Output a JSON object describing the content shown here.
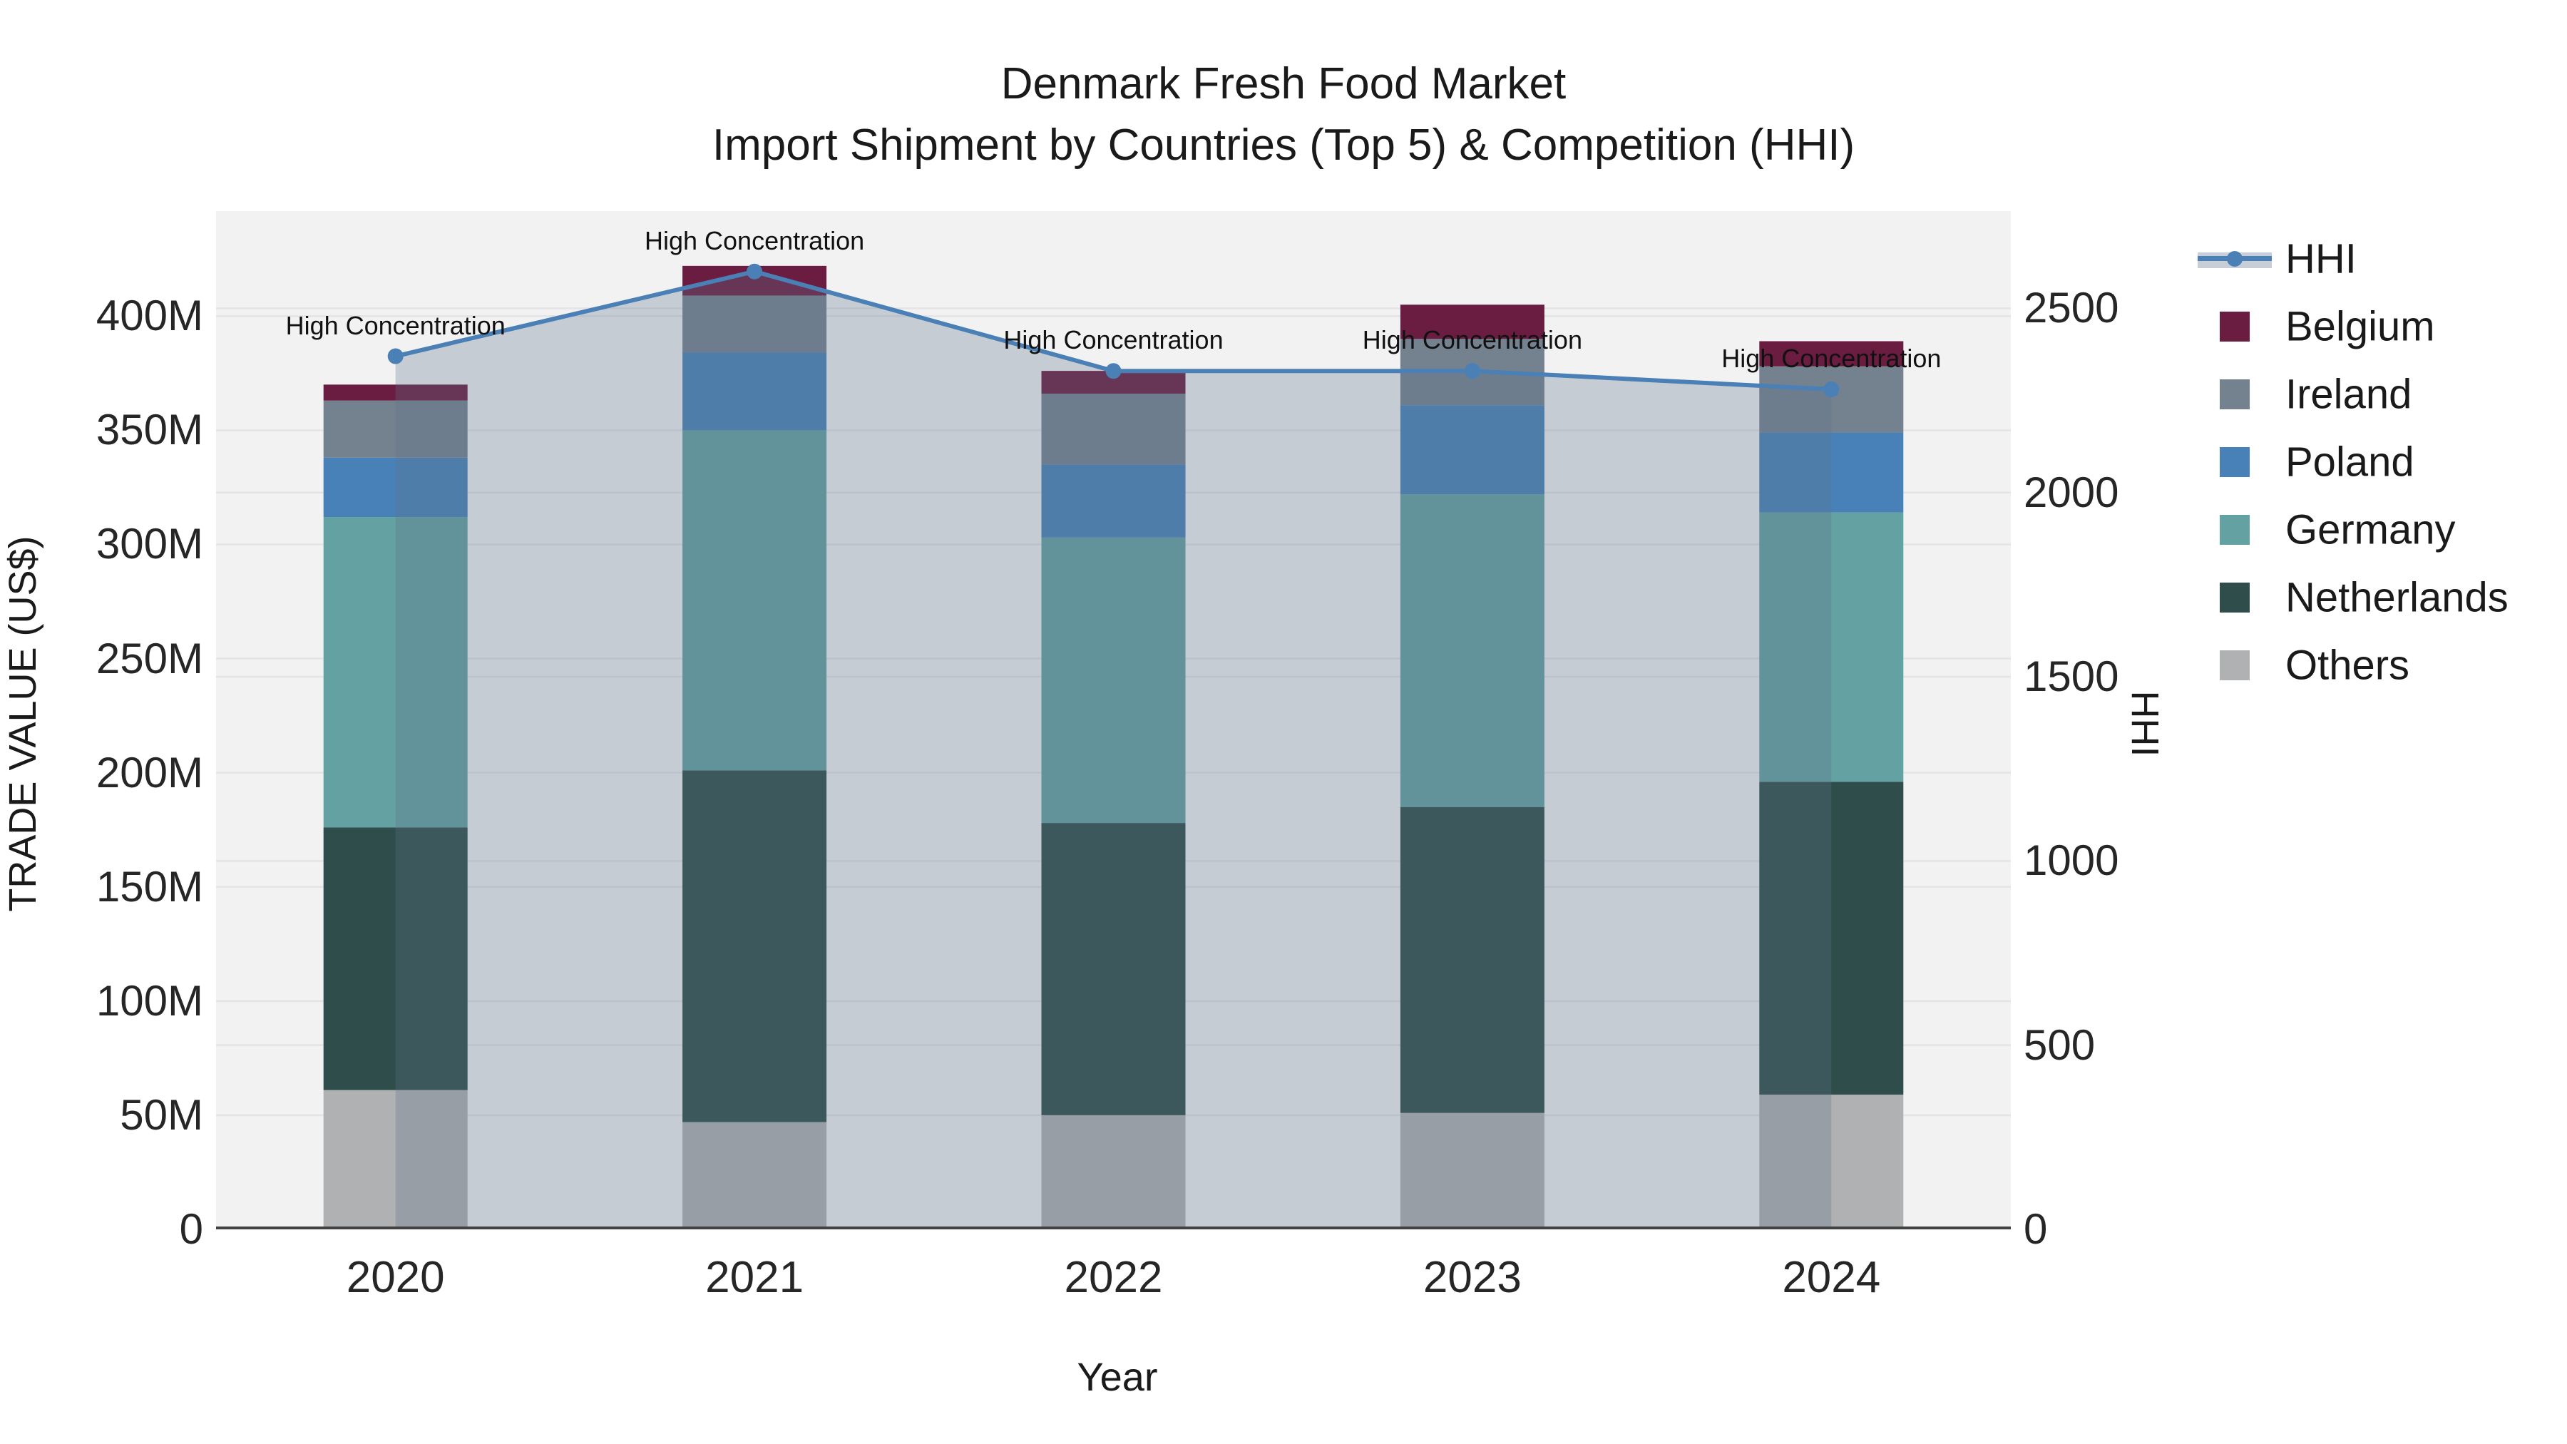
{
  "title": {
    "line1": "Denmark Fresh Food Market",
    "line2": "Import Shipment by Countries (Top 5) & Competition (HHI)"
  },
  "x_axis": {
    "title": "Year",
    "tick_labels": [
      "2020",
      "2021",
      "2022",
      "2023",
      "2024"
    ]
  },
  "y_axis_left": {
    "title": "TRADE VALUE (US$)",
    "tick_labels": [
      "0",
      "50M",
      "100M",
      "150M",
      "200M",
      "250M",
      "300M",
      "350M",
      "400M"
    ],
    "tick_values": [
      0,
      50,
      100,
      150,
      200,
      250,
      300,
      350,
      400
    ]
  },
  "y_axis_right": {
    "title": "HHI",
    "tick_labels": [
      "0",
      "500",
      "1000",
      "1500",
      "2000",
      "2500"
    ],
    "tick_values": [
      0,
      500,
      1000,
      1500,
      2000,
      2500
    ]
  },
  "annotation_label": "High Concentration",
  "legend": {
    "items": [
      {
        "label": "HHI",
        "type": "line"
      },
      {
        "label": "Belgium",
        "type": "swatch",
        "color": "#6B1C41"
      },
      {
        "label": "Ireland",
        "type": "swatch",
        "color": "#74818F"
      },
      {
        "label": "Poland",
        "type": "swatch",
        "color": "#4781B8"
      },
      {
        "label": "Germany",
        "type": "swatch",
        "color": "#63A1A2"
      },
      {
        "label": "Netherlands",
        "type": "swatch",
        "color": "#2F4D4A"
      },
      {
        "label": "Others",
        "type": "swatch",
        "color": "#AFB1B2"
      }
    ]
  },
  "colors": {
    "belgium": "#6B1C41",
    "ireland": "#74818F",
    "poland": "#4781B8",
    "germany": "#63A1A2",
    "netherlands": "#2F4D4A",
    "others": "#AFB1B2",
    "hhi_line": "#4A80B5",
    "hhi_fill": "rgba(95,115,140,0.30)",
    "plot_background": "#F2F2F3",
    "gridline": "#E4E4E7",
    "x_axis_line": "#424242"
  },
  "chart_data": {
    "type": "bar",
    "stacked": true,
    "categories": [
      "2020",
      "2021",
      "2022",
      "2023",
      "2024"
    ],
    "unit": "M US$ (trade value), index points (HHI)",
    "series": [
      {
        "name": "Others",
        "values": [
          61,
          47,
          50,
          51,
          59
        ]
      },
      {
        "name": "Netherlands",
        "values": [
          115,
          154,
          128,
          134,
          137
        ]
      },
      {
        "name": "Germany",
        "values": [
          136,
          149,
          125,
          137,
          118
        ]
      },
      {
        "name": "Poland",
        "values": [
          26,
          34,
          32,
          39,
          35
        ]
      },
      {
        "name": "Ireland",
        "values": [
          25,
          25,
          31,
          29,
          29
        ]
      },
      {
        "name": "Belgium",
        "values": [
          7,
          13,
          10,
          15,
          11
        ]
      }
    ],
    "totals": [
      370,
      422,
      376,
      405,
      389
    ],
    "line_series": {
      "name": "HHI",
      "axis": "right",
      "values": [
        2370,
        2600,
        2330,
        2330,
        2280
      ]
    },
    "point_annotations": [
      "High Concentration",
      "High Concentration",
      "High Concentration",
      "High Concentration",
      "High Concentration"
    ],
    "title": "Denmark Fresh Food Market — Import Shipment by Countries (Top 5) & Competition (HHI)",
    "xlabel": "Year",
    "ylabel_left": "TRADE VALUE (US$)",
    "ylabel_right": "HHI",
    "ylim_left": [
      0,
      446
    ],
    "ylim_right": [
      0,
      2764
    ],
    "grid": true,
    "legend_position": "right"
  }
}
